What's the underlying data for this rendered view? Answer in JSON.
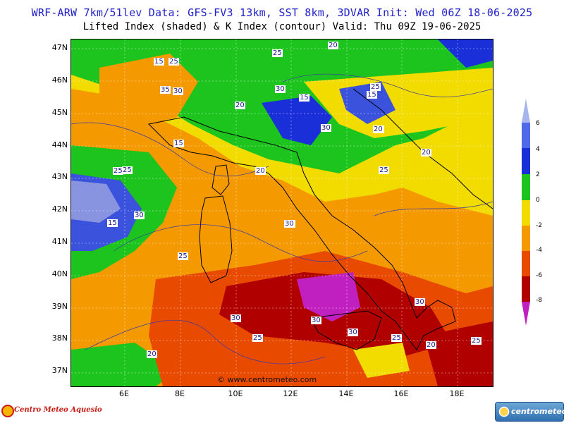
{
  "header": {
    "line1": "WRF-ARW 7km/51lev  Data: GFS-FV3 13km, SST 8km, 3DVAR  Init: Wed 06Z 18-06-2025",
    "line2": "Lifted Index (shaded) & K Index (contour)  Valid: Thu 09Z 19-06-2025"
  },
  "axes": {
    "lat_labels": [
      "47N",
      "46N",
      "45N",
      "44N",
      "43N",
      "42N",
      "41N",
      "40N",
      "39N",
      "38N",
      "37N"
    ],
    "lon_labels": [
      "6E",
      "8E",
      "10E",
      "12E",
      "14E",
      "16E",
      "18E"
    ]
  },
  "watermark": "© www.centrometeo.com",
  "contour_labels": [
    "20",
    "15",
    "25",
    "25",
    "30",
    "25",
    "15",
    "15",
    "35",
    "30",
    "20",
    "30",
    "15",
    "15",
    "20",
    "25",
    "25",
    "20",
    "25",
    "30",
    "15",
    "15",
    "25",
    "30",
    "30",
    "30",
    "30",
    "25",
    "25",
    "20",
    "20",
    "25",
    "20",
    "30",
    "25"
  ],
  "colorbar": {
    "labels": [
      "6",
      "4",
      "2",
      "0",
      "-2",
      "-4",
      "-6",
      "-8"
    ],
    "colors": [
      "#a8b4ee",
      "#5068ea",
      "#1a2fd8",
      "#1ec41e",
      "#f2dc00",
      "#f49a00",
      "#e84a00",
      "#b00000",
      "#c020c0"
    ]
  },
  "logos": {
    "left": "Centro Meteo Aquesio",
    "right": "centrometeo"
  },
  "map_colors": {
    "blue_light": "#8894e0",
    "blue_mid": "#3a52dc",
    "blue_dark": "#1a2fd8",
    "green": "#1ec41e",
    "yellow": "#f2dc00",
    "orange": "#f49a00",
    "red_orange": "#e84a00",
    "dark_red": "#b00000",
    "magenta": "#c020c0"
  }
}
